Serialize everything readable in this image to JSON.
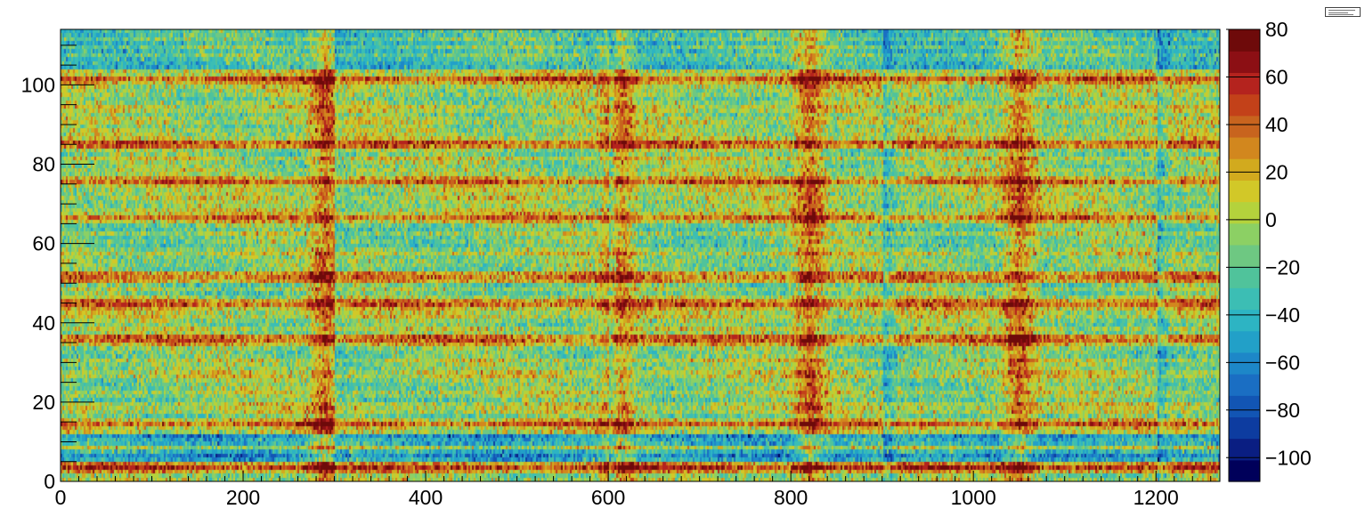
{
  "chart_data": {
    "type": "heatmap",
    "title": "",
    "xlabel": "",
    "ylabel": "",
    "xlim": [
      0,
      1270
    ],
    "ylim": [
      0,
      114
    ],
    "zlim": [
      -110,
      80
    ],
    "x_ticks": [
      0,
      200,
      400,
      600,
      800,
      1000,
      1200
    ],
    "y_ticks": [
      0,
      20,
      40,
      60,
      80,
      100
    ],
    "z_ticks": [
      80,
      60,
      40,
      20,
      0,
      -20,
      -40,
      -60,
      -80,
      -100
    ],
    "x_tick_labels": [
      "0",
      "200",
      "400",
      "600",
      "800",
      "1000",
      "1200"
    ],
    "y_tick_labels": [
      "0",
      "20",
      "40",
      "60",
      "80",
      "100"
    ],
    "z_tick_labels": [
      "80",
      "60",
      "40",
      "20",
      "0",
      "−20",
      "−40",
      "−60",
      "−80",
      "−100"
    ],
    "colorscale": "rainbow",
    "palette": [
      "#00005a",
      "#0a1e82",
      "#0d3ca0",
      "#1255b4",
      "#1a6ec3",
      "#1d87c8",
      "#22a0c8",
      "#2db4c3",
      "#3cbeb4",
      "#50c39b",
      "#6ec882",
      "#8cd064",
      "#b4d23c",
      "#d2c828",
      "#d2aa1e",
      "#d2871e",
      "#c8641e",
      "#c34119",
      "#b4231e",
      "#8c0f14",
      "#6e0a0a"
    ],
    "column_boundaries": [
      300,
      600,
      900,
      1200
    ],
    "hot_columns": [
      290,
      610,
      820,
      1050
    ],
    "hot_rows": [
      101,
      85,
      75,
      66,
      51,
      44,
      35,
      14,
      3
    ],
    "cold_rows": [
      6,
      10
    ],
    "grid": false,
    "legend": "none"
  }
}
